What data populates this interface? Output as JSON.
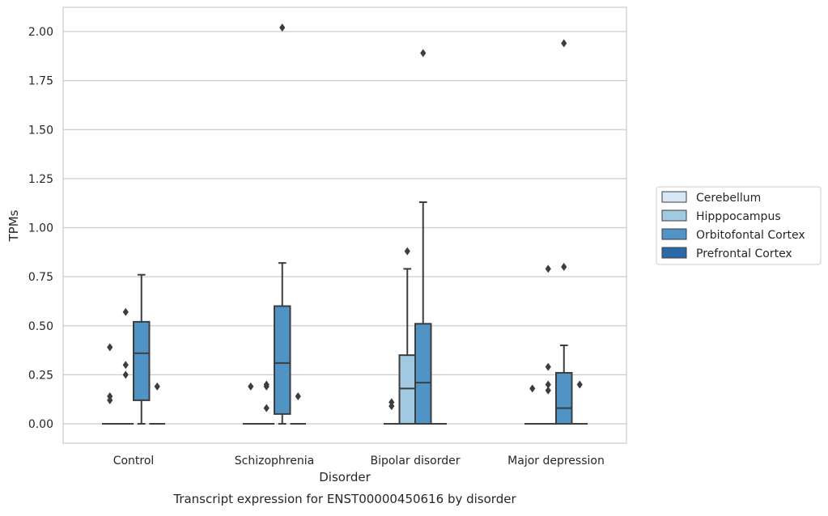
{
  "chart_data": {
    "type": "box",
    "xlabel": "Disorder",
    "ylabel": "TPMs",
    "caption": "Transcript expression for ENST00000450616 by disorder",
    "ylim": [
      -0.1,
      2.12
    ],
    "yticks": [
      0.0,
      0.25,
      0.5,
      0.75,
      1.0,
      1.25,
      1.5,
      1.75,
      2.0
    ],
    "ytick_labels": [
      "0.00",
      "0.25",
      "0.50",
      "0.75",
      "1.00",
      "1.25",
      "1.50",
      "1.75",
      "2.00"
    ],
    "grid": true,
    "legend_position": "right",
    "categories": [
      "Control",
      "Schizophrenia",
      "Bipolar disorder",
      "Major depression"
    ],
    "series": [
      {
        "name": "Cerebellum",
        "color": "#d6e6f4",
        "boxes": [
          {
            "q1": 0,
            "median": 0,
            "q3": 0,
            "whisker_low": 0,
            "whisker_high": 0,
            "outliers": [
              0.14,
              0.12,
              0.39
            ]
          },
          {
            "q1": 0,
            "median": 0,
            "q3": 0,
            "whisker_low": 0,
            "whisker_high": 0,
            "outliers": [
              0.19
            ]
          },
          {
            "q1": 0,
            "median": 0,
            "q3": 0,
            "whisker_low": 0,
            "whisker_high": 0,
            "outliers": [
              0.11,
              0.09
            ]
          },
          {
            "q1": 0,
            "median": 0,
            "q3": 0,
            "whisker_low": 0,
            "whisker_high": 0,
            "outliers": [
              0.18
            ]
          }
        ]
      },
      {
        "name": "Hipppocampus",
        "color": "#a1c9e1",
        "boxes": [
          {
            "q1": 0,
            "median": 0,
            "q3": 0,
            "whisker_low": 0,
            "whisker_high": 0,
            "outliers": [
              0.57,
              0.3,
              0.25
            ]
          },
          {
            "q1": 0,
            "median": 0,
            "q3": 0,
            "whisker_low": 0,
            "whisker_high": 0,
            "outliers": [
              0.2,
              0.19,
              0.08
            ]
          },
          {
            "q1": 0,
            "median": 0.18,
            "q3": 0.35,
            "whisker_low": 0,
            "whisker_high": 0.79,
            "outliers": [
              0.88
            ]
          },
          {
            "q1": 0,
            "median": 0,
            "q3": 0,
            "whisker_low": 0,
            "whisker_high": 0,
            "outliers": [
              0.29,
              0.2,
              0.17,
              0.79
            ]
          }
        ]
      },
      {
        "name": "Orbitofontal Cortex",
        "color": "#5094c6",
        "boxes": [
          {
            "q1": 0.12,
            "median": 0.36,
            "q3": 0.52,
            "whisker_low": 0,
            "whisker_high": 0.76,
            "outliers": []
          },
          {
            "q1": 0.05,
            "median": 0.31,
            "q3": 0.6,
            "whisker_low": 0,
            "whisker_high": 0.82,
            "outliers": [
              2.02
            ]
          },
          {
            "q1": 0,
            "median": 0.21,
            "q3": 0.51,
            "whisker_low": 0,
            "whisker_high": 1.13,
            "outliers": [
              1.89
            ]
          },
          {
            "q1": 0,
            "median": 0.08,
            "q3": 0.26,
            "whisker_low": 0,
            "whisker_high": 0.4,
            "outliers": [
              1.94,
              0.8
            ]
          }
        ]
      },
      {
        "name": "Prefrontal Cortex",
        "color": "#2a6aa8",
        "boxes": [
          {
            "q1": 0,
            "median": 0,
            "q3": 0,
            "whisker_low": 0,
            "whisker_high": 0,
            "outliers": [
              0.19
            ]
          },
          {
            "q1": 0,
            "median": 0,
            "q3": 0,
            "whisker_low": 0,
            "whisker_high": 0,
            "outliers": [
              0.14
            ]
          },
          {
            "q1": 0,
            "median": 0,
            "q3": 0,
            "whisker_low": 0,
            "whisker_high": 0,
            "outliers": []
          },
          {
            "q1": 0,
            "median": 0,
            "q3": 0,
            "whisker_low": 0,
            "whisker_high": 0,
            "outliers": [
              0.2
            ]
          }
        ]
      }
    ]
  }
}
